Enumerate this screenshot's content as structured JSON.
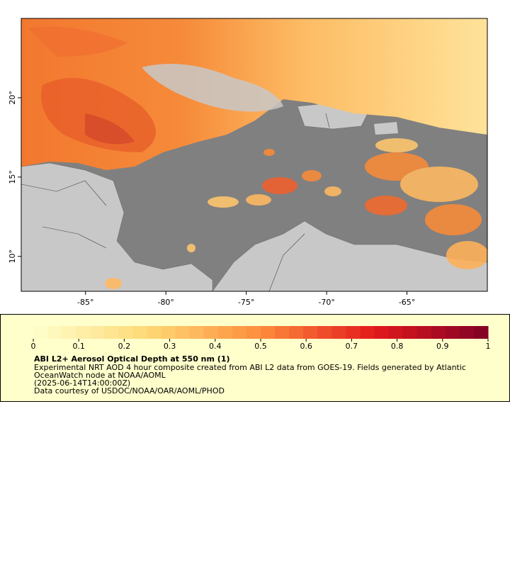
{
  "map": {
    "xlim": [
      -89,
      -60
    ],
    "ylim": [
      7.8,
      25
    ],
    "xticks": [
      {
        "value": -85,
        "label": "-85°"
      },
      {
        "value": -80,
        "label": "-80°"
      },
      {
        "value": -75,
        "label": "-75°"
      },
      {
        "value": -70,
        "label": "-70°"
      },
      {
        "value": -65,
        "label": "-65°"
      }
    ],
    "yticks": [
      {
        "value": 10,
        "label": "10°"
      },
      {
        "value": 15,
        "label": "15°"
      },
      {
        "value": 20,
        "label": "20°"
      }
    ]
  },
  "colorbar": {
    "lim": [
      0,
      1
    ],
    "ticks": [
      0,
      0.1,
      0.2,
      0.3,
      0.4,
      0.5,
      0.6,
      0.7,
      0.8,
      0.9,
      1
    ],
    "colormap": [
      "#ffffcc",
      "#fed976",
      "#fd8d3c",
      "#e31a1c",
      "#800026"
    ]
  },
  "caption": {
    "title": "ABI L2+ Aerosol Optical Depth at 550 nm (1)",
    "lines": [
      "Experimental NRT AOD 4 hour composite created from ABI L2 data from GOES-19. Fields generated by Atlantic",
      "OceanWatch node at NOAA/AOML",
      "(2025-06-14T14:00:00Z)",
      "Data courtesy of USDOC/NOAA/OAR/AOML/PHOD"
    ]
  }
}
